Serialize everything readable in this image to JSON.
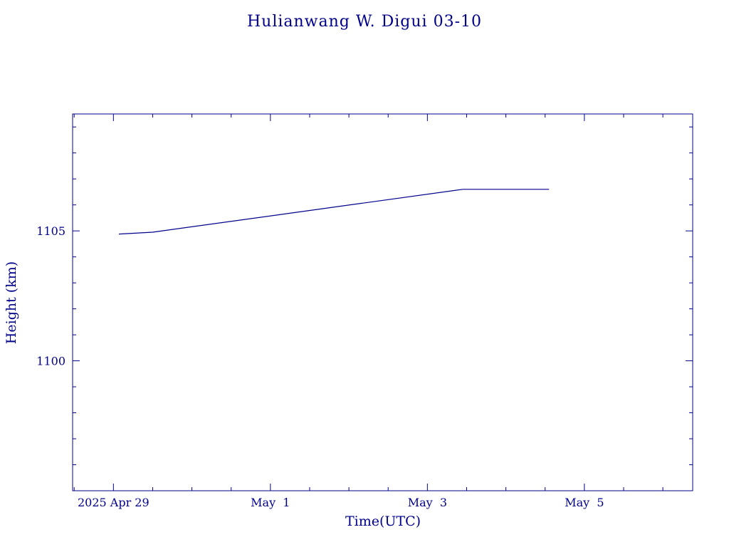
{
  "chart_data": {
    "type": "line",
    "title": "Hulianwang W. Digui 03-10",
    "xlabel": "Time(UTC)",
    "ylabel": "Height (km)",
    "color": "#00008b",
    "grid": false,
    "x_unit": "days from 2025 Apr 29 00:00 UTC",
    "xlim": [
      -0.52,
      7.38
    ],
    "ylim": [
      1095.0,
      1109.5
    ],
    "x_ticks": [
      {
        "value": 0,
        "label": "2025 Apr 29"
      },
      {
        "value": 2,
        "label": "May  1"
      },
      {
        "value": 4,
        "label": "May  3"
      },
      {
        "value": 6,
        "label": "May  5"
      }
    ],
    "y_ticks": [
      {
        "value": 1100,
        "label": "1100"
      },
      {
        "value": 1105,
        "label": "1105"
      }
    ],
    "series": [
      {
        "name": "",
        "x": [
          0.07,
          0.5,
          4.45,
          5.55
        ],
        "y": [
          1104.88,
          1104.95,
          1106.6,
          1106.6
        ]
      }
    ]
  }
}
